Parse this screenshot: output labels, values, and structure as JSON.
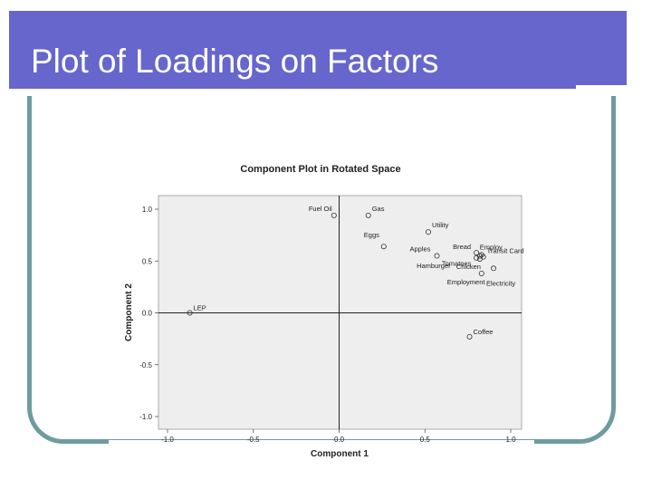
{
  "slide": {
    "title": "Plot of Loadings on Factors"
  },
  "chart_data": {
    "type": "scatter",
    "title": "Component Plot in Rotated Space",
    "xlabel": "Component 1",
    "ylabel": "Component 2",
    "xlim": [
      -1.0,
      1.0
    ],
    "ylim": [
      -1.0,
      1.0
    ],
    "xticks": [
      "-1.0",
      "-0.5",
      "0.0",
      "0.5",
      "1.0"
    ],
    "yticks": [
      "1.0",
      "0.5",
      "0.0",
      "-0.5",
      "-1.0"
    ],
    "grid": false,
    "reference_lines": [
      0,
      0
    ],
    "points": [
      {
        "label": "Fuel Oil",
        "x": -0.03,
        "y": 0.94
      },
      {
        "label": "Gas",
        "x": 0.17,
        "y": 0.94
      },
      {
        "label": "Utility",
        "x": 0.52,
        "y": 0.78
      },
      {
        "label": "Eggs",
        "x": 0.26,
        "y": 0.64
      },
      {
        "label": "Apples",
        "x": 0.57,
        "y": 0.55
      },
      {
        "label": "Bread",
        "x": 0.8,
        "y": 0.58
      },
      {
        "label": "Employ",
        "x": 0.83,
        "y": 0.56
      },
      {
        "label": "Transit Card",
        "x": 0.84,
        "y": 0.54
      },
      {
        "label": "Hamburger",
        "x": 0.8,
        "y": 0.53
      },
      {
        "label": "Tomatoes",
        "x": 0.82,
        "y": 0.55
      },
      {
        "label": "Chicken",
        "x": 0.82,
        "y": 0.52
      },
      {
        "label": "Employment",
        "x": 0.83,
        "y": 0.38
      },
      {
        "label": "Electricity",
        "x": 0.9,
        "y": 0.43
      },
      {
        "label": "LEP",
        "x": -0.87,
        "y": 0.0
      },
      {
        "label": "Coffee",
        "x": 0.76,
        "y": -0.23
      }
    ]
  }
}
